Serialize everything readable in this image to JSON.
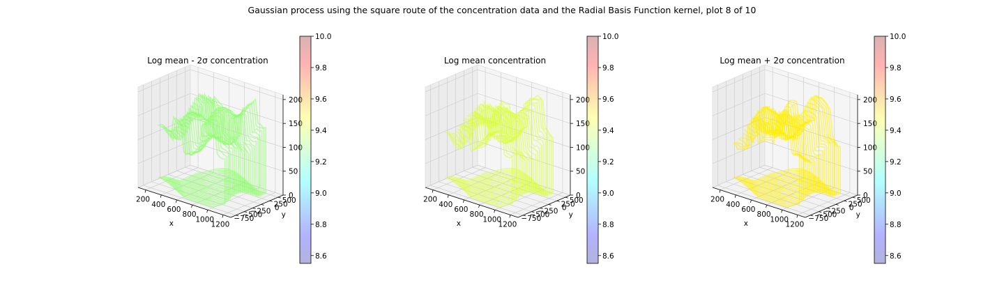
{
  "figure": {
    "suptitle": "Gaussian process using the square route of the concentration data and the Radial Basis Function kernel, plot 8 of 10"
  },
  "colorbar": {
    "ticks": [
      "8.6",
      "8.8",
      "9.0",
      "9.2",
      "9.4",
      "9.6",
      "9.8",
      "10.0"
    ],
    "range": [
      8.55,
      10.0
    ],
    "colormap": "jet",
    "alpha": 0.3
  },
  "chart_data": [
    {
      "type": "scatter3d",
      "title": "Log mean - 2σ concentration",
      "xlabel": "x",
      "ylabel": "y",
      "zlabel": "",
      "x_ticks": [
        "200",
        "400",
        "600",
        "800",
        "1000",
        "1200"
      ],
      "y_ticks": [
        "−750",
        "−500",
        "−250",
        "0",
        "250",
        "500"
      ],
      "z_ticks": [
        "0",
        "50",
        "100",
        "150",
        "200"
      ],
      "xlim": [
        100,
        1300
      ],
      "ylim": [
        -900,
        650
      ],
      "zlim": [
        0,
        210
      ],
      "approx_value": 9.3,
      "color": "#8cff6a"
    },
    {
      "type": "scatter3d",
      "title": "Log mean concentration",
      "xlabel": "x",
      "ylabel": "y",
      "zlabel": "",
      "x_ticks": [
        "200",
        "400",
        "600",
        "800",
        "1000",
        "1200"
      ],
      "y_ticks": [
        "−750",
        "−500",
        "−250",
        "0",
        "250",
        "500"
      ],
      "z_ticks": [
        "0",
        "50",
        "100",
        "150",
        "200"
      ],
      "xlim": [
        100,
        1300
      ],
      "ylim": [
        -900,
        650
      ],
      "zlim": [
        0,
        210
      ],
      "approx_value": 9.45,
      "color": "#d8ff3a"
    },
    {
      "type": "scatter3d",
      "title": "Log mean + 2σ concentration",
      "xlabel": "x",
      "ylabel": "y",
      "zlabel": "",
      "x_ticks": [
        "200",
        "400",
        "600",
        "800",
        "1000",
        "1200"
      ],
      "y_ticks": [
        "−750",
        "−500",
        "−250",
        "0",
        "250",
        "500"
      ],
      "z_ticks": [
        "0",
        "50",
        "100",
        "150",
        "200"
      ],
      "xlim": [
        100,
        1300
      ],
      "ylim": [
        -900,
        650
      ],
      "zlim": [
        0,
        210
      ],
      "approx_value": 9.5,
      "color": "#ffee00"
    }
  ]
}
